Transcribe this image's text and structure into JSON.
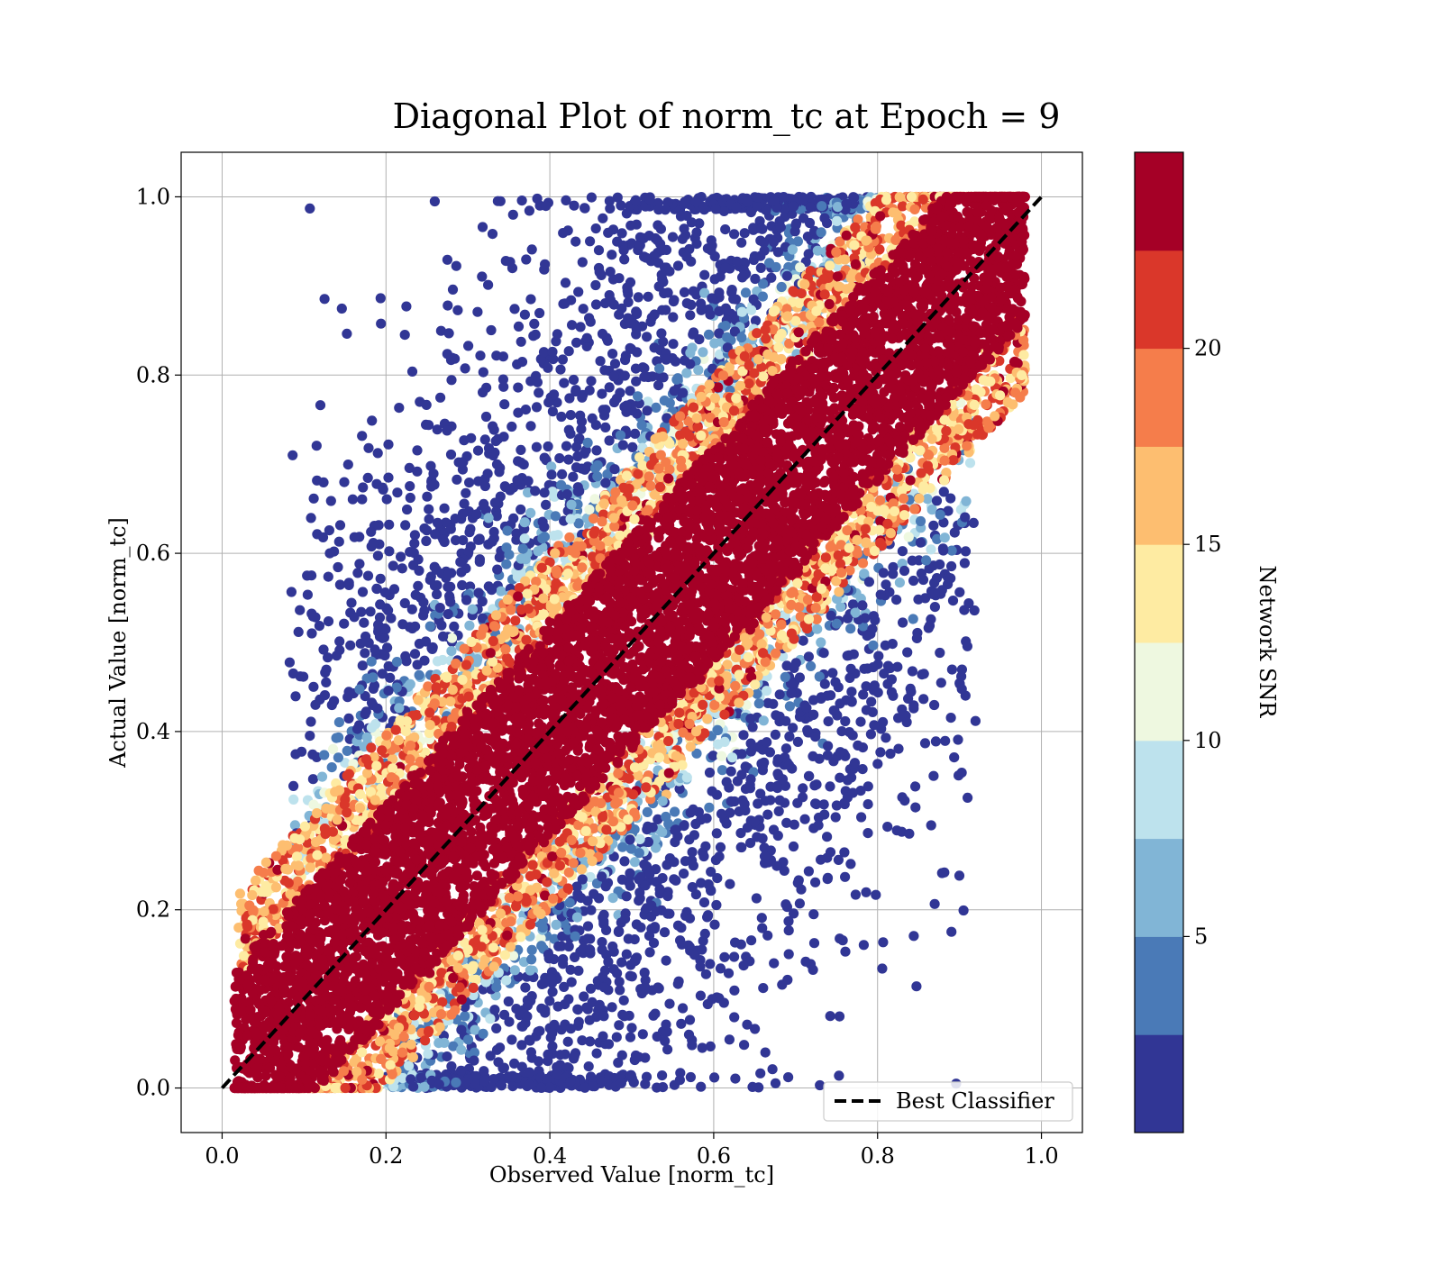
{
  "chart_data": {
    "type": "scatter",
    "title": "Diagonal Plot of norm_tc at Epoch = 9",
    "xlabel": "Observed Value [norm_tc]",
    "ylabel": "Actual Value [norm_tc]",
    "xlim": [
      -0.05,
      1.05
    ],
    "ylim": [
      -0.05,
      1.05
    ],
    "xticks": [
      0.0,
      0.2,
      0.4,
      0.6,
      0.8,
      1.0
    ],
    "xtick_labels": [
      "0.0",
      "0.2",
      "0.4",
      "0.6",
      "0.8",
      "1.0"
    ],
    "yticks": [
      0.0,
      0.2,
      0.4,
      0.6,
      0.8,
      1.0
    ],
    "ytick_labels": [
      "0.0",
      "0.2",
      "0.4",
      "0.6",
      "0.8",
      "1.0"
    ],
    "grid": true,
    "reference_line": {
      "label": "Best Classifier",
      "x": [
        0,
        1
      ],
      "y": [
        0,
        1
      ],
      "style": "dashed",
      "color": "#000000"
    },
    "legend": {
      "placement": "lower-right",
      "entries": [
        "Best Classifier"
      ]
    },
    "colorbar": {
      "label": "Network SNR",
      "range": [
        0,
        25
      ],
      "ticks": [
        5,
        10,
        15,
        20
      ],
      "tick_labels": [
        "5",
        "10",
        "15",
        "20"
      ],
      "colors": [
        "#313695",
        "#4575b4",
        "#74add1",
        "#abd9e9",
        "#e0f3f8",
        "#ffffbf",
        "#fee090",
        "#fdae61",
        "#f46d43",
        "#d73027",
        "#a50026"
      ],
      "bin_colors": [
        "#313695",
        "#4a7ab7",
        "#81b5d6",
        "#bde2ed",
        "#eef8e0",
        "#feeba2",
        "#fdbe70",
        "#f57d4b",
        "#da372a",
        "#a50026"
      ]
    },
    "points": {
      "description_free_summary": [
        {
          "region": "diagonal_band",
          "x_range": [
            0.0,
            1.0
          ],
          "offset_abs_max": 0.12,
          "snr_range": [
            20,
            25
          ]
        },
        {
          "region": "band_edge",
          "x_range": [
            0.0,
            1.0
          ],
          "offset_abs_range": [
            0.12,
            0.22
          ],
          "snr_range": [
            12,
            22
          ]
        },
        {
          "region": "upper_scatter",
          "x_range": [
            0.05,
            0.78
          ],
          "y_range": [
            0.3,
            1.0
          ],
          "snr_range": [
            0,
            12
          ]
        },
        {
          "region": "lower_scatter",
          "x_range": [
            0.2,
            0.95
          ],
          "y_range": [
            0.0,
            0.7
          ],
          "snr_range": [
            0,
            12
          ]
        }
      ]
    }
  }
}
